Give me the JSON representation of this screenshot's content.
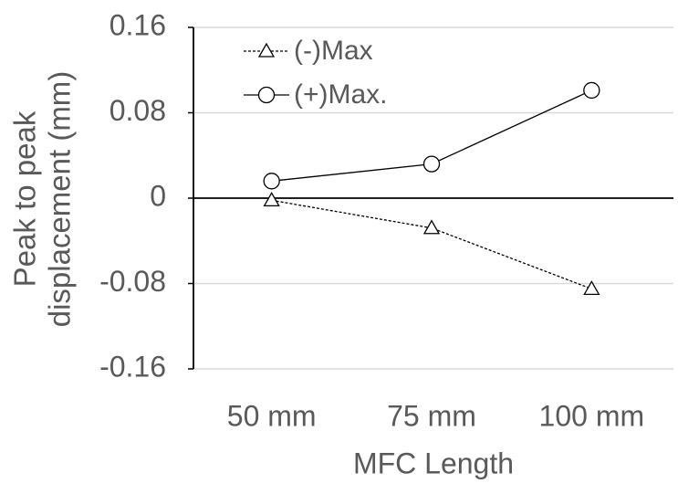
{
  "chart_data": {
    "type": "line",
    "categories": [
      "50 mm",
      "75 mm",
      "100 mm"
    ],
    "series": [
      {
        "name": "(-)Max",
        "marker": "triangle",
        "line_style": "dashed",
        "values": [
          -0.002,
          -0.028,
          -0.085
        ]
      },
      {
        "name": "(+)Max.",
        "marker": "circle",
        "line_style": "solid",
        "values": [
          0.016,
          0.032,
          0.101
        ]
      }
    ],
    "y_ticks": [
      "0.16",
      "0.08",
      "0",
      "-0.08",
      "-0.16"
    ],
    "y_tick_values": [
      0.16,
      0.08,
      0,
      -0.08,
      -0.16
    ],
    "xlabel": "MFC Length",
    "ylabel_lines": [
      "Peak to peak",
      "displacement (mm)"
    ],
    "ylim": [
      -0.16,
      0.16
    ],
    "grid": true,
    "legend_position": "top-left",
    "colors": {
      "line": "#000000",
      "grid": "#d9d9d9",
      "text": "#595959"
    }
  }
}
